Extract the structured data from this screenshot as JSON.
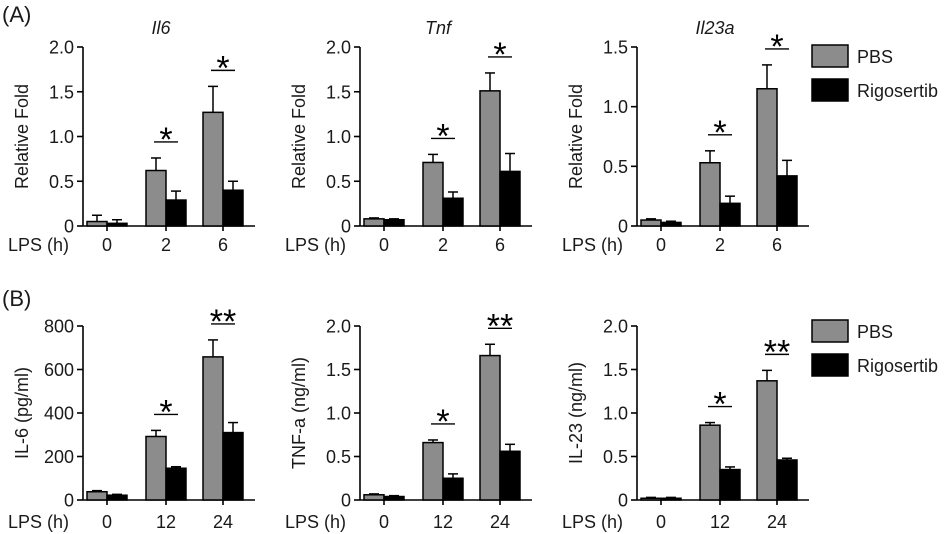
{
  "chart_data": [
    {
      "panel_label": "(A)",
      "type": "bar",
      "xlabel": "LPS (h)",
      "categories": [
        "0",
        "2",
        "6"
      ],
      "legend": [
        {
          "name": "PBS",
          "color": "#8c8c8c"
        },
        {
          "name": "Rigosertib",
          "color": "#000000"
        }
      ],
      "legend_position": "right",
      "grid": false,
      "charts": [
        {
          "type": "bar",
          "title": "Il6",
          "ylabel": "Relative Fold",
          "ylim": [
            0,
            2.0
          ],
          "yticks": [
            "0",
            "0.5",
            "1.0",
            "1.5",
            "2.0"
          ],
          "series": [
            {
              "values": [
                0.05,
                0.62,
                1.27
              ],
              "errors": [
                0.07,
                0.14,
                0.29
              ]
            },
            {
              "values": [
                0.03,
                0.29,
                0.4
              ],
              "errors": [
                0.04,
                0.1,
                0.1
              ]
            }
          ],
          "significance": [
            "",
            "*",
            "*"
          ]
        },
        {
          "type": "bar",
          "title": "Tnf",
          "ylabel": "Relative Fold",
          "ylim": [
            0,
            2.0
          ],
          "yticks": [
            "0",
            "0.5",
            "1.0",
            "1.5",
            "2.0"
          ],
          "series": [
            {
              "values": [
                0.08,
                0.71,
                1.51
              ],
              "errors": [
                0.01,
                0.09,
                0.2
              ]
            },
            {
              "values": [
                0.07,
                0.31,
                0.61
              ],
              "errors": [
                0.01,
                0.07,
                0.2
              ]
            }
          ],
          "significance": [
            "",
            "*",
            "*"
          ]
        },
        {
          "type": "bar",
          "title": "Il23a",
          "ylabel": "Relative Fold",
          "ylim": [
            0,
            1.5
          ],
          "yticks": [
            "0",
            "0.5",
            "1.0",
            "1.5"
          ],
          "series": [
            {
              "values": [
                0.05,
                0.53,
                1.15
              ],
              "errors": [
                0.01,
                0.1,
                0.2
              ]
            },
            {
              "values": [
                0.03,
                0.19,
                0.42
              ],
              "errors": [
                0.01,
                0.06,
                0.13
              ]
            }
          ],
          "significance": [
            "",
            "*",
            "*"
          ]
        }
      ]
    },
    {
      "panel_label": "(B)",
      "type": "bar",
      "xlabel": "LPS (h)",
      "categories": [
        "0",
        "12",
        "24"
      ],
      "legend": [
        {
          "name": "PBS",
          "color": "#8c8c8c"
        },
        {
          "name": "Rigosertib",
          "color": "#000000"
        }
      ],
      "legend_position": "right",
      "grid": false,
      "charts": [
        {
          "type": "bar",
          "ylabel": "IL-6 (pg/ml)",
          "ylim": [
            0,
            800
          ],
          "yticks": [
            "0",
            "200",
            "400",
            "600",
            "800"
          ],
          "series": [
            {
              "values": [
                38,
                292,
                658
              ],
              "errors": [
                5,
                28,
                78
              ]
            },
            {
              "values": [
                22,
                146,
                310
              ],
              "errors": [
                4,
                7,
                46
              ]
            }
          ],
          "significance": [
            "",
            "*",
            "**"
          ]
        },
        {
          "type": "bar",
          "ylabel": "TNF-a (ng/ml)",
          "ylim": [
            0,
            2.0
          ],
          "yticks": [
            "0",
            "0.5",
            "1.0",
            "1.5",
            "2.0"
          ],
          "series": [
            {
              "values": [
                0.06,
                0.66,
                1.66
              ],
              "errors": [
                0.01,
                0.03,
                0.13
              ]
            },
            {
              "values": [
                0.04,
                0.25,
                0.56
              ],
              "errors": [
                0.01,
                0.05,
                0.08
              ]
            }
          ],
          "significance": [
            "",
            "*",
            "**"
          ]
        },
        {
          "type": "bar",
          "ylabel": "IL-23 (ng/ml)",
          "ylim": [
            0,
            2.0
          ],
          "yticks": [
            "0",
            "0.5",
            "1.0",
            "1.5",
            "2.0"
          ],
          "series": [
            {
              "values": [
                0.02,
                0.86,
                1.37
              ],
              "errors": [
                0.01,
                0.03,
                0.12
              ]
            },
            {
              "values": [
                0.02,
                0.35,
                0.46
              ],
              "errors": [
                0.01,
                0.03,
                0.02
              ]
            }
          ],
          "significance": [
            "",
            "*",
            "**"
          ]
        }
      ]
    }
  ]
}
